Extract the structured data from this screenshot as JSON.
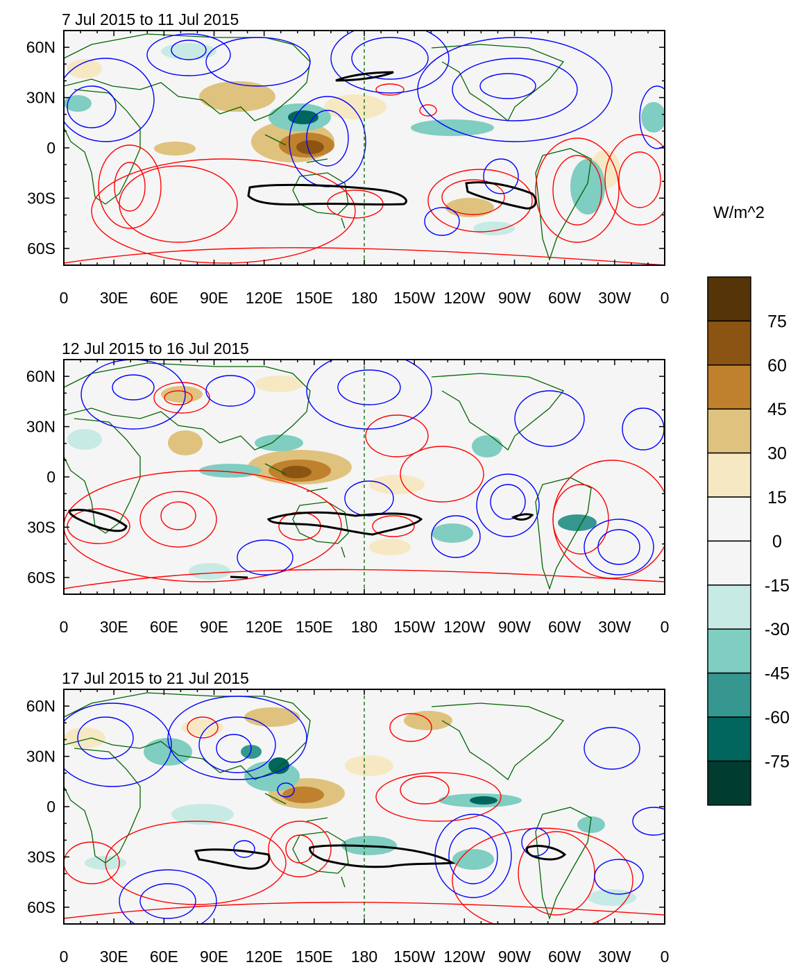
{
  "panels": [
    {
      "title": "7 Jul 2015 to 11 Jul 2015"
    },
    {
      "title": "12 Jul 2015 to 16 Jul 2015"
    },
    {
      "title": "17 Jul 2015 to 21 Jul 2015"
    }
  ],
  "lon_labels": [
    "0",
    "30E",
    "60E",
    "90E",
    "120E",
    "150E",
    "180",
    "150W",
    "120W",
    "90W",
    "60W",
    "30W",
    "0"
  ],
  "lat_labels": [
    "60N",
    "30N",
    "0",
    "30S",
    "60S"
  ],
  "colorbar": {
    "unit": "W/m^2",
    "tick_labels": [
      "75",
      "60",
      "45",
      "30",
      "15",
      "0",
      "-15",
      "-30",
      "-45",
      "-60",
      "-75"
    ],
    "colors": [
      "#553408",
      "#8b5412",
      "#bf812d",
      "#dfc27d",
      "#f6e8c3",
      "#f5f5f5",
      "#f5f5f5",
      "#c7eae5",
      "#80cdc1",
      "#35978f",
      "#01665e",
      "#003c30"
    ]
  },
  "colors": {
    "positive_contour": "#ff0000",
    "negative_contour": "#0000ff",
    "coastline": "#006400",
    "frame": "#000000",
    "background": "#f5f5f5"
  }
}
